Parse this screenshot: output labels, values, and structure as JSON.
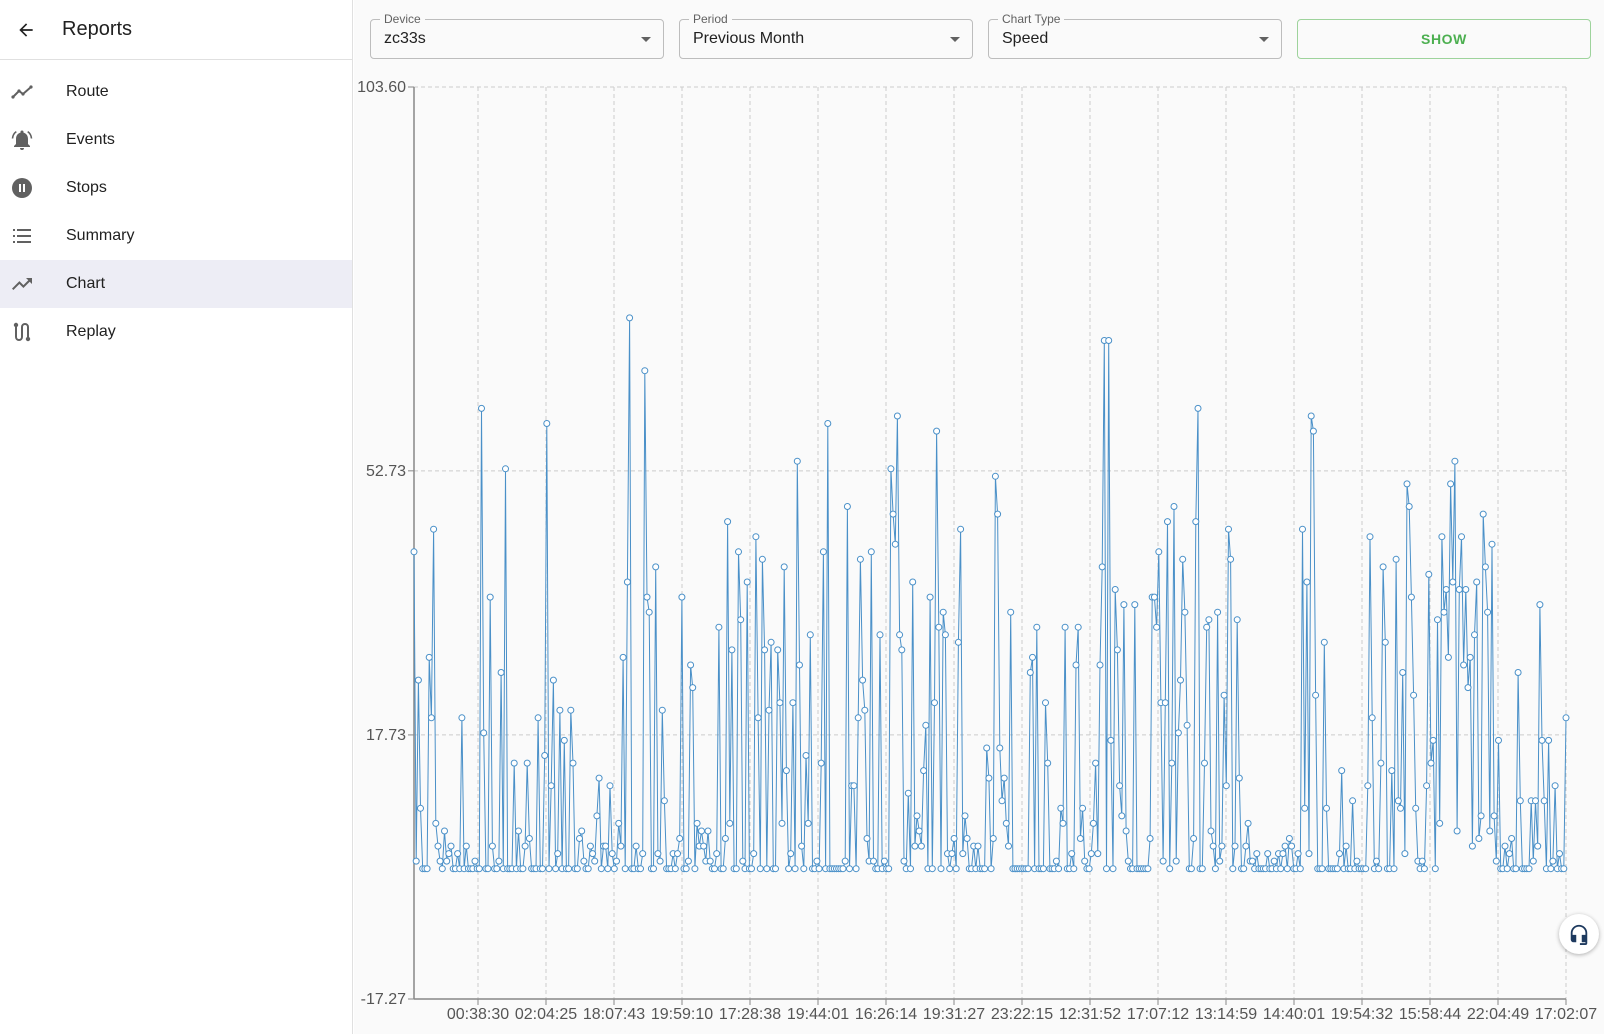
{
  "sidebar": {
    "title": "Reports",
    "back_icon": "arrow-back-icon",
    "items": [
      {
        "label": "Route",
        "icon": "timeline-icon",
        "active": false
      },
      {
        "label": "Events",
        "icon": "notifications-active-icon",
        "active": false
      },
      {
        "label": "Stops",
        "icon": "pause-circle-icon",
        "active": false
      },
      {
        "label": "Summary",
        "icon": "format-list-icon",
        "active": false
      },
      {
        "label": "Chart",
        "icon": "trending-up-icon",
        "active": true
      },
      {
        "label": "Replay",
        "icon": "route-icon",
        "active": false
      }
    ]
  },
  "filters": {
    "device": {
      "label": "Device",
      "value": "zc33s"
    },
    "period": {
      "label": "Period",
      "value": "Previous Month"
    },
    "chart_type": {
      "label": "Chart Type",
      "value": "Speed"
    },
    "show_label": "SHOW"
  },
  "support_icon": "headset-icon",
  "colors": {
    "line": "#4a90c8",
    "accent_green": "#4caf50",
    "active_nav": "#ededf5"
  },
  "chart_data": {
    "type": "line",
    "title": "",
    "xlabel": "",
    "ylabel": "",
    "ylim": [
      -17.27,
      103.6
    ],
    "y_ticks": [
      "103.60",
      "52.73",
      "17.73",
      "-17.27"
    ],
    "x_tick_labels": [
      "00:38:30",
      "02:04:25",
      "18:07:43",
      "19:59:10",
      "17:28:38",
      "19:44:01",
      "16:26:14",
      "19:31:27",
      "23:22:15",
      "12:31:52",
      "17:07:12",
      "13:14:59",
      "14:40:01",
      "19:54:32",
      "15:58:44",
      "22:04:49",
      "17:02:07"
    ],
    "grid": true,
    "series": [
      {
        "values": [
          42,
          1,
          25,
          8,
          0,
          0,
          0,
          28,
          20,
          45,
          6,
          3,
          1,
          0,
          5,
          1,
          2,
          3,
          0,
          0,
          2,
          0,
          20,
          0,
          3,
          0,
          0,
          0,
          1,
          0,
          0,
          61,
          18,
          0,
          0,
          36,
          3,
          0,
          0,
          1,
          26,
          0,
          53,
          0,
          0,
          0,
          14,
          0,
          5,
          0,
          0,
          3,
          14,
          4,
          0,
          0,
          0,
          20,
          0,
          0,
          15,
          59,
          0,
          11,
          25,
          0,
          2,
          21,
          0,
          17,
          0,
          0,
          21,
          14,
          0,
          0,
          4,
          5,
          1,
          0,
          0,
          3,
          2,
          1,
          7,
          12,
          0,
          3,
          3,
          0,
          11,
          2,
          0,
          1,
          6,
          3,
          28,
          0,
          38,
          73,
          0,
          0,
          3,
          0,
          0,
          2,
          66,
          36,
          34,
          0,
          0,
          40,
          2,
          1,
          21,
          9,
          0,
          0,
          0,
          2,
          0,
          2,
          4,
          36,
          0,
          0,
          1,
          27,
          24,
          0,
          6,
          3,
          5,
          3,
          1,
          5,
          1,
          0,
          0,
          2,
          32,
          0,
          0,
          4,
          46,
          6,
          29,
          0,
          0,
          42,
          33,
          1,
          0,
          38,
          0,
          0,
          2,
          44,
          20,
          0,
          41,
          29,
          0,
          21,
          30,
          0,
          0,
          29,
          22,
          6,
          40,
          13,
          0,
          2,
          22,
          0,
          54,
          27,
          3,
          0,
          15,
          6,
          31,
          0,
          0,
          1,
          0,
          14,
          42,
          0,
          59,
          0,
          0,
          0,
          0,
          0,
          0,
          0,
          1,
          48,
          0,
          11,
          11,
          0,
          20,
          41,
          25,
          21,
          4,
          1,
          42,
          1,
          0,
          0,
          31,
          0,
          1,
          0,
          0,
          53,
          47,
          43,
          60,
          31,
          29,
          1,
          0,
          10,
          0,
          38,
          3,
          7,
          5,
          3,
          13,
          19,
          0,
          36,
          0,
          22,
          58,
          32,
          0,
          34,
          31,
          2,
          0,
          2,
          4,
          0,
          30,
          45,
          2,
          7,
          4,
          0,
          0,
          3,
          0,
          3,
          0,
          0,
          0,
          16,
          12,
          0,
          4,
          52,
          47,
          16,
          9,
          12,
          6,
          3,
          34,
          0,
          0,
          0,
          0,
          0,
          0,
          0,
          0,
          26,
          28,
          0,
          32,
          0,
          0,
          0,
          22,
          14,
          0,
          0,
          0,
          1,
          0,
          8,
          6,
          32,
          0,
          0,
          2,
          0,
          27,
          32,
          4,
          8,
          1,
          0,
          0,
          2,
          6,
          14,
          2,
          27,
          40,
          70,
          0,
          70,
          17,
          0,
          37,
          29,
          11,
          7,
          35,
          5,
          1,
          0,
          0,
          35,
          0,
          0,
          0,
          0,
          0,
          0,
          4,
          36,
          36,
          32,
          42,
          22,
          1,
          22,
          46,
          0,
          14,
          48,
          1,
          18,
          25,
          41,
          34,
          19,
          0,
          0,
          4,
          46,
          61,
          0,
          0,
          14,
          32,
          33,
          5,
          3,
          0,
          34,
          1,
          3,
          23,
          11,
          45,
          41,
          0,
          3,
          33,
          12,
          0,
          0,
          3,
          6,
          1,
          1,
          0,
          2,
          0,
          0,
          0,
          0,
          2,
          0,
          0,
          1,
          0,
          2,
          0,
          2,
          3,
          0,
          4,
          3,
          0,
          0,
          2,
          0,
          45,
          8,
          38,
          2,
          60,
          58,
          23,
          0,
          0,
          0,
          30,
          8,
          0,
          0,
          0,
          0,
          0,
          2,
          13,
          0,
          3,
          0,
          0,
          9,
          0,
          1,
          0,
          0,
          0,
          0,
          11,
          44,
          20,
          0,
          1,
          0,
          14,
          40,
          30,
          0,
          0,
          13,
          0,
          41,
          9,
          8,
          26,
          2,
          51,
          48,
          36,
          23,
          8,
          1,
          0,
          1,
          0,
          11,
          39,
          14,
          17,
          0,
          33,
          6,
          44,
          34,
          37,
          28,
          51,
          38,
          54,
          5,
          37,
          44,
          27,
          37,
          24,
          28,
          3,
          31,
          38,
          4,
          7,
          47,
          40,
          34,
          5,
          43,
          7,
          1,
          17,
          0,
          0,
          3,
          0,
          2,
          4,
          0,
          0,
          26,
          9,
          0,
          0,
          0,
          0,
          9,
          1,
          9,
          3,
          35,
          17,
          9,
          0,
          17,
          0,
          1,
          11,
          0,
          2,
          0,
          0,
          20
        ]
      }
    ]
  }
}
